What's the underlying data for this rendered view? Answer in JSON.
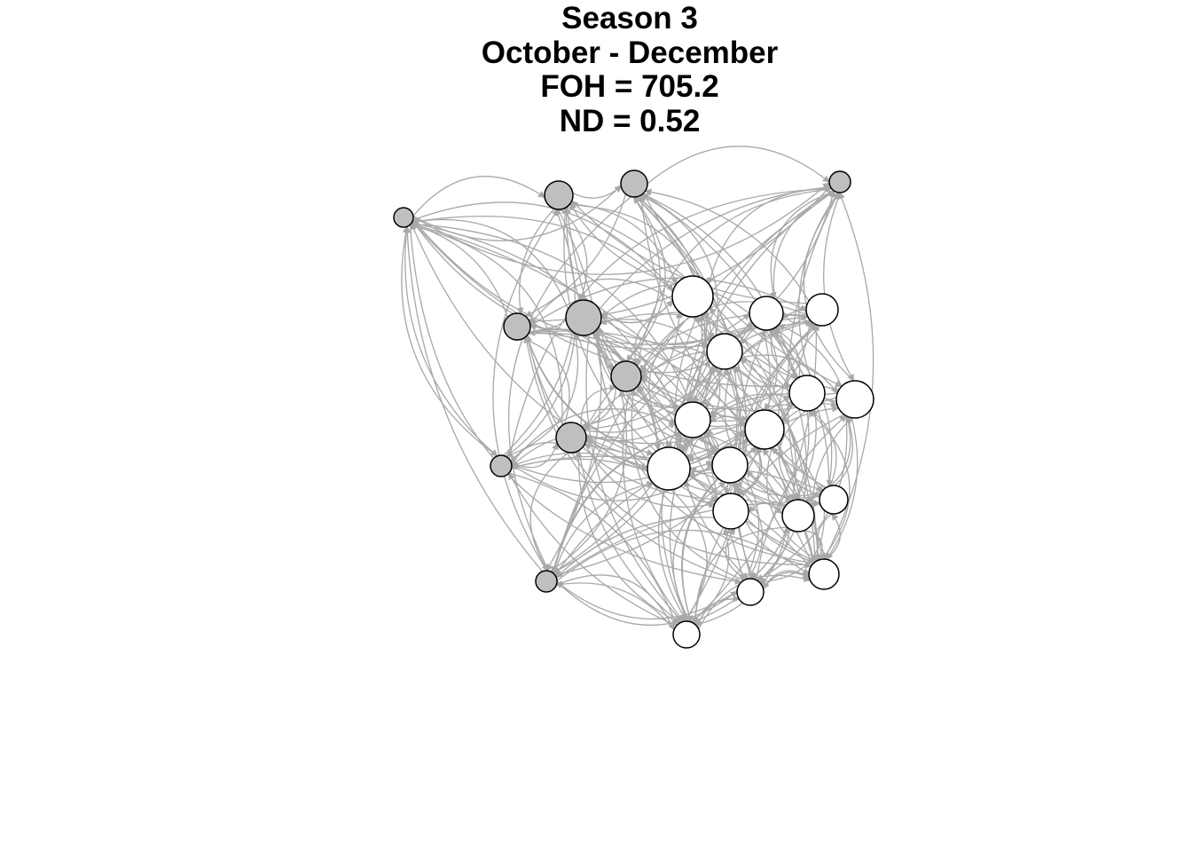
{
  "title": {
    "line1": "Season 3",
    "line2": "October - December",
    "line3": "FOH = 705.2",
    "line4": "ND = 0.52"
  },
  "graph": {
    "edge_color": "#a8a8a8",
    "group_colors": {
      "gray": "#bfbfbf",
      "white": "#ffffff"
    },
    "nodes": [
      {
        "id": "g1",
        "group": "gray"
      },
      {
        "id": "g2",
        "group": "gray"
      },
      {
        "id": "g3",
        "group": "gray"
      },
      {
        "id": "g4",
        "group": "gray"
      },
      {
        "id": "g5",
        "group": "gray"
      },
      {
        "id": "g6",
        "group": "gray"
      },
      {
        "id": "g7",
        "group": "gray"
      },
      {
        "id": "g8",
        "group": "gray"
      },
      {
        "id": "g9",
        "group": "gray"
      },
      {
        "id": "g10",
        "group": "gray"
      },
      {
        "id": "w1",
        "group": "white"
      },
      {
        "id": "w2",
        "group": "white"
      },
      {
        "id": "w3",
        "group": "white"
      },
      {
        "id": "w4",
        "group": "white"
      },
      {
        "id": "w5",
        "group": "white"
      },
      {
        "id": "w6",
        "group": "white"
      },
      {
        "id": "w7",
        "group": "white"
      },
      {
        "id": "w8",
        "group": "white"
      },
      {
        "id": "w9",
        "group": "white"
      },
      {
        "id": "w10",
        "group": "white"
      },
      {
        "id": "w11",
        "group": "white"
      },
      {
        "id": "w12",
        "group": "white"
      },
      {
        "id": "w13",
        "group": "white"
      },
      {
        "id": "w14",
        "group": "white"
      },
      {
        "id": "w15",
        "group": "white"
      },
      {
        "id": "w16",
        "group": "white"
      }
    ]
  }
}
